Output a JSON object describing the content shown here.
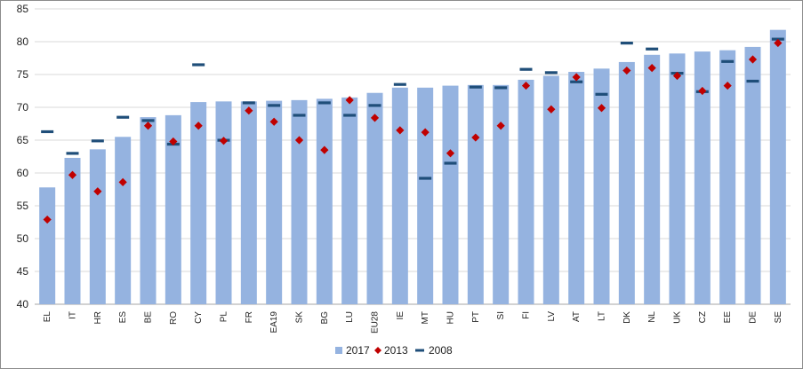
{
  "chart_data": {
    "type": "bar",
    "title": "",
    "xlabel": "",
    "ylabel": "",
    "ylim": [
      40,
      85
    ],
    "yticks": [
      40,
      45,
      50,
      55,
      60,
      65,
      70,
      75,
      80,
      85
    ],
    "grid": true,
    "legend_position": "bottom",
    "categories": [
      "EL",
      "IT",
      "HR",
      "ES",
      "BE",
      "RO",
      "CY",
      "PL",
      "FR",
      "EA19",
      "SK",
      "BG",
      "LU",
      "EU28",
      "IE",
      "MT",
      "HU",
      "PT",
      "SI",
      "FI",
      "LV",
      "AT",
      "LT",
      "DK",
      "NL",
      "UK",
      "CZ",
      "EE",
      "DE",
      "SE"
    ],
    "series": [
      {
        "name": "2017",
        "kind": "bar",
        "color": "#95B3E0",
        "values": [
          57.8,
          62.3,
          63.6,
          65.5,
          68.5,
          68.8,
          70.8,
          70.9,
          70.9,
          71.0,
          71.1,
          71.3,
          71.5,
          72.2,
          73.0,
          73.0,
          73.3,
          73.4,
          73.4,
          74.2,
          74.8,
          75.4,
          75.9,
          76.9,
          78.0,
          78.2,
          78.5,
          78.7,
          79.2,
          81.8
        ]
      },
      {
        "name": "2013",
        "kind": "marker-diamond",
        "color": "#C00000",
        "values": [
          52.9,
          59.7,
          57.2,
          58.6,
          67.2,
          64.8,
          67.2,
          64.9,
          69.5,
          67.8,
          65.0,
          63.5,
          71.1,
          68.4,
          66.5,
          66.2,
          63.0,
          65.4,
          67.2,
          73.3,
          69.7,
          74.6,
          69.9,
          75.6,
          76.0,
          74.8,
          72.5,
          73.3,
          77.3,
          79.8
        ]
      },
      {
        "name": "2008",
        "kind": "marker-dash",
        "color": "#1F4E79",
        "values": [
          66.3,
          63.0,
          64.9,
          68.5,
          68.0,
          64.4,
          76.5,
          65.0,
          70.7,
          70.3,
          68.8,
          70.7,
          68.8,
          70.3,
          73.5,
          59.2,
          61.5,
          73.1,
          73.0,
          75.8,
          75.3,
          73.9,
          72.0,
          79.8,
          78.9,
          75.2,
          72.4,
          77.0,
          74.0,
          80.4
        ]
      }
    ]
  }
}
